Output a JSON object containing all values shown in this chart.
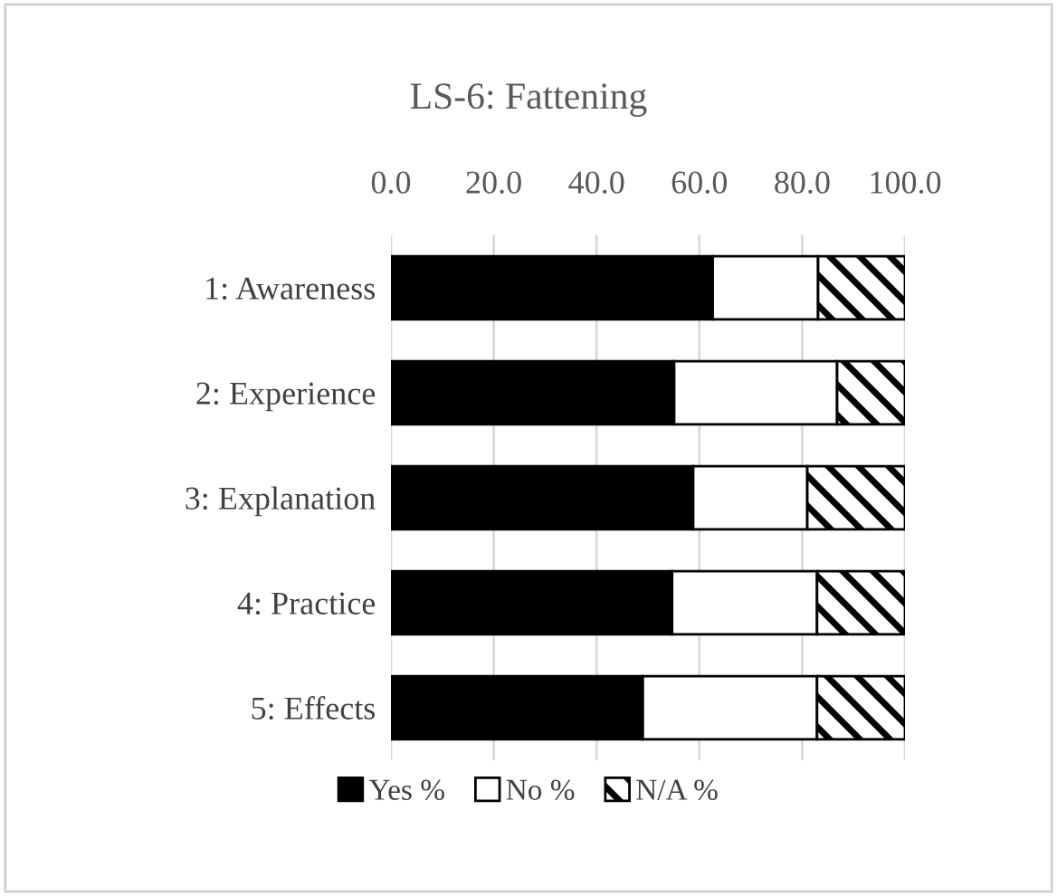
{
  "chart_data": {
    "type": "bar",
    "title": "LS-6: Fattening",
    "orientation": "horizontal",
    "stacked": true,
    "categories": [
      "1: Awareness",
      "2: Experience",
      "3: Explanation",
      "4: Practice",
      "5: Effects"
    ],
    "series": [
      {
        "name": "Yes %",
        "color": "#000000",
        "values": [
          62.6,
          55.1,
          58.8,
          54.7,
          49.0
        ]
      },
      {
        "name": "No %",
        "color": "#ffffff",
        "values": [
          20.5,
          31.7,
          22.2,
          28.2,
          33.9
        ]
      },
      {
        "name": "N/A %",
        "color": "#000000",
        "values": [
          16.9,
          13.2,
          19.0,
          17.1,
          17.1
        ]
      }
    ],
    "xlim": [
      0,
      100
    ],
    "xticks": [
      {
        "value": 0,
        "label": "0.0"
      },
      {
        "value": 20,
        "label": "20.0"
      },
      {
        "value": 40,
        "label": "40.0"
      },
      {
        "value": 60,
        "label": "60.0"
      },
      {
        "value": 80,
        "label": "80.0"
      },
      {
        "value": 100,
        "label": "100.0"
      }
    ],
    "grid": "x",
    "legend": "bottom"
  }
}
